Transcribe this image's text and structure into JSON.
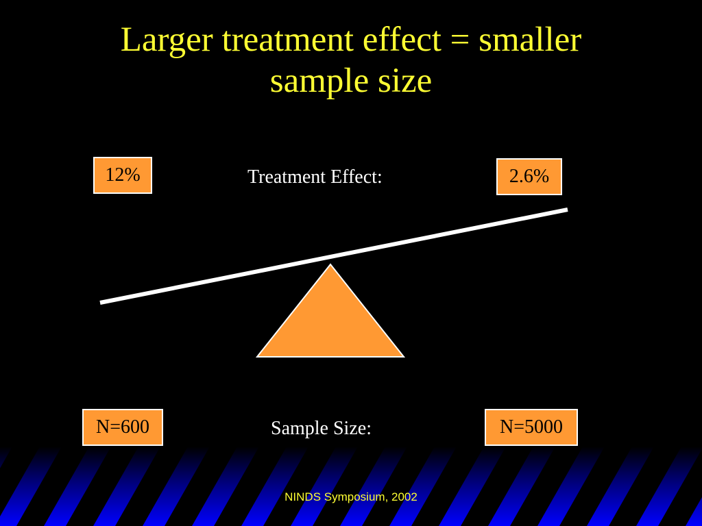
{
  "title": {
    "line1": "Larger treatment effect = smaller",
    "line2": "sample size"
  },
  "treatment_effect": {
    "label": "Treatment Effect:",
    "left_value": "12%",
    "right_value": "2.6%"
  },
  "sample_size": {
    "label": "Sample Size:",
    "left_value": "N=600",
    "right_value": "N=5000"
  },
  "footer": {
    "text": "NINDS Symposium, 2002"
  },
  "colors": {
    "background": "#000000",
    "title": "#ffff33",
    "box_fill": "#ff9933",
    "fulcrum": "#ff9933",
    "beam": "#ffffff",
    "stripe_band_top": "#000000",
    "stripe_band_bottom": "#0000ff"
  }
}
